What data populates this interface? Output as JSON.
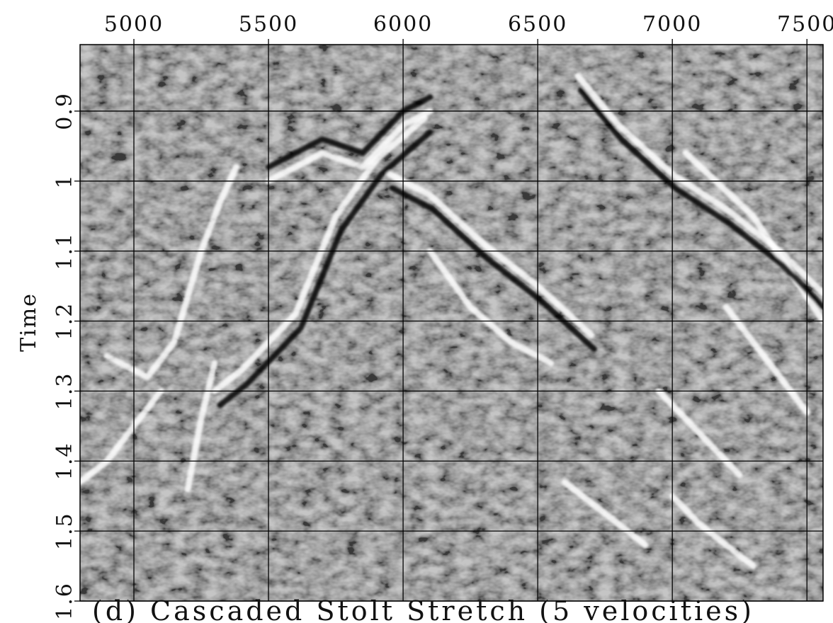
{
  "chart_data": {
    "type": "heatmap",
    "title": "",
    "caption": "(d) Cascaded Stolt Stretch (5 velocities)",
    "xlabel": "",
    "ylabel": "Time",
    "xlim": [
      4800,
      7560
    ],
    "ylim": [
      0.805,
      1.6
    ],
    "y_reversed": true,
    "x_ticks": [
      5000,
      5500,
      6000,
      6500,
      7000,
      7500
    ],
    "x_tick_labels": [
      "5000",
      "5500",
      "6000",
      "6500",
      "7000",
      "7500"
    ],
    "y_ticks": [
      0.9,
      1.0,
      1.1,
      1.2,
      1.3,
      1.4,
      1.5,
      1.6
    ],
    "y_tick_labels": [
      "0.9",
      "1",
      "1.1",
      "1.2",
      "1.3",
      "1.4",
      "1.5",
      "1.6"
    ],
    "x_axis_position": "top",
    "grid": true,
    "colormap": "grayscale",
    "colors": {
      "background": "#808080",
      "bright": "#ffffff",
      "dark": "#000000",
      "grid": "#000000"
    },
    "events": [
      {
        "name": "steep reflector upper",
        "x": [
          7050,
          7300,
          7560
        ],
        "y": [
          0.96,
          1.05,
          1.2
        ],
        "tone": "bright"
      },
      {
        "name": "steep reflector",
        "x": [
          6650,
          6800,
          7000,
          7200,
          7400,
          7560
        ],
        "y": [
          0.85,
          0.92,
          0.99,
          1.04,
          1.1,
          1.16
        ],
        "tone": "bright"
      },
      {
        "name": "steep reflector shadow",
        "x": [
          6660,
          6810,
          7010,
          7210,
          7410,
          7560
        ],
        "y": [
          0.87,
          0.94,
          1.01,
          1.06,
          1.12,
          1.18
        ],
        "tone": "dark"
      },
      {
        "name": "dome flank right",
        "x": [
          5950,
          6100,
          6300,
          6500,
          6700
        ],
        "y": [
          0.99,
          1.02,
          1.09,
          1.15,
          1.22
        ],
        "tone": "bright"
      },
      {
        "name": "dome flank right shadow",
        "x": [
          5960,
          6110,
          6310,
          6510,
          6710
        ],
        "y": [
          1.01,
          1.04,
          1.11,
          1.17,
          1.24
        ],
        "tone": "dark"
      },
      {
        "name": "dome flank right lower",
        "x": [
          6100,
          6250,
          6400,
          6550
        ],
        "y": [
          1.1,
          1.18,
          1.23,
          1.26
        ],
        "tone": "bright"
      },
      {
        "name": "dome crest",
        "x": [
          5500,
          5700,
          5850,
          6000,
          6100
        ],
        "y": [
          1.0,
          0.96,
          0.98,
          0.92,
          0.9
        ],
        "tone": "bright"
      },
      {
        "name": "dome crest shadow",
        "x": [
          5500,
          5700,
          5850,
          6000,
          6100
        ],
        "y": [
          0.98,
          0.94,
          0.96,
          0.9,
          0.88
        ],
        "tone": "dark"
      },
      {
        "name": "dome flank left",
        "x": [
          5300,
          5400,
          5600,
          5750,
          5900,
          6080
        ],
        "y": [
          1.3,
          1.27,
          1.19,
          1.05,
          0.97,
          0.91
        ],
        "tone": "bright"
      },
      {
        "name": "dome flank left shadow",
        "x": [
          5320,
          5420,
          5620,
          5770,
          5920,
          6100
        ],
        "y": [
          1.32,
          1.29,
          1.21,
          1.07,
          0.99,
          0.93
        ],
        "tone": "dark"
      },
      {
        "name": "fault diffraction left",
        "x": [
          4900,
          5050,
          5150,
          5250,
          5320,
          5380
        ],
        "y": [
          1.25,
          1.28,
          1.23,
          1.1,
          1.03,
          0.98
        ],
        "tone": "bright"
      },
      {
        "name": "fault diffraction lower",
        "x": [
          5200,
          5250,
          5300
        ],
        "y": [
          1.44,
          1.34,
          1.26
        ],
        "tone": "bright"
      },
      {
        "name": "lower left event",
        "x": [
          4800,
          4900,
          5000,
          5100
        ],
        "y": [
          1.43,
          1.4,
          1.35,
          1.3
        ],
        "tone": "bright"
      },
      {
        "name": "dipping event right 1",
        "x": [
          6950,
          7050,
          7150,
          7250
        ],
        "y": [
          1.3,
          1.34,
          1.38,
          1.42
        ],
        "tone": "bright"
      },
      {
        "name": "dipping event right 2",
        "x": [
          7200,
          7300,
          7400,
          7500
        ],
        "y": [
          1.18,
          1.23,
          1.28,
          1.33
        ],
        "tone": "bright"
      },
      {
        "name": "dipping event right 3",
        "x": [
          6600,
          6700,
          6800,
          6900
        ],
        "y": [
          1.43,
          1.46,
          1.49,
          1.52
        ],
        "tone": "bright"
      },
      {
        "name": "dipping event right 4",
        "x": [
          7000,
          7100,
          7200,
          7300
        ],
        "y": [
          1.45,
          1.49,
          1.52,
          1.55
        ],
        "tone": "bright"
      }
    ]
  }
}
